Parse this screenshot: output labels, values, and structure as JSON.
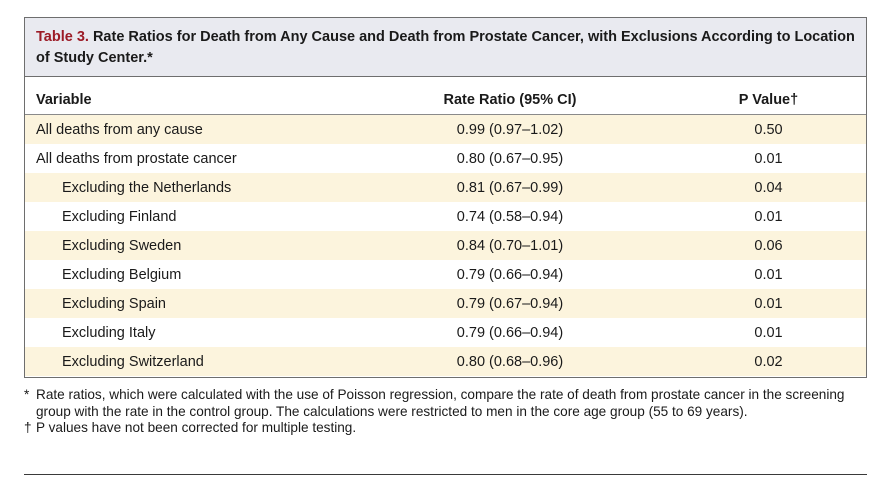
{
  "table": {
    "label": "Table 3.",
    "title": "Rate Ratios for Death from Any Cause and Death from Prostate Cancer, with Exclusions According to Location of Study Center.*",
    "headers": {
      "variable": "Variable",
      "rate_ratio": "Rate Ratio (95% CI)",
      "p_value": "P Value†"
    },
    "rows": [
      {
        "variable": "All deaths from any cause",
        "rate_ratio": "0.99 (0.97–1.02)",
        "p_value": "0.50"
      },
      {
        "variable": "All deaths from prostate cancer",
        "rate_ratio": "0.80 (0.67–0.95)",
        "p_value": "0.01"
      },
      {
        "variable": "Excluding the Netherlands",
        "rate_ratio": "0.81 (0.67–0.99)",
        "p_value": "0.04"
      },
      {
        "variable": "Excluding Finland",
        "rate_ratio": "0.74 (0.58–0.94)",
        "p_value": "0.01"
      },
      {
        "variable": "Excluding Sweden",
        "rate_ratio": "0.84 (0.70–1.01)",
        "p_value": "0.06"
      },
      {
        "variable": "Excluding Belgium",
        "rate_ratio": "0.79 (0.66–0.94)",
        "p_value": "0.01"
      },
      {
        "variable": "Excluding Spain",
        "rate_ratio": "0.79 (0.67–0.94)",
        "p_value": "0.01"
      },
      {
        "variable": "Excluding Italy",
        "rate_ratio": "0.79 (0.66–0.94)",
        "p_value": "0.01"
      },
      {
        "variable": "Excluding Switzerland",
        "rate_ratio": "0.80 (0.68–0.96)",
        "p_value": "0.02"
      }
    ]
  },
  "footnotes": [
    {
      "mark": "*",
      "text": "Rate ratios, which were calculated with the use of Poisson regression, compare the rate of death from prostate cancer in the screening group with the rate in the control group. The calculations were restricted to men in the core age group (55 to 69 years)."
    },
    {
      "mark": "†",
      "text": "P values have not been corrected for multiple testing."
    }
  ],
  "colors": {
    "label_red": "#9c1b26",
    "caption_bg": "#e9eaf0",
    "stripe_bg": "#fcf4dd"
  }
}
